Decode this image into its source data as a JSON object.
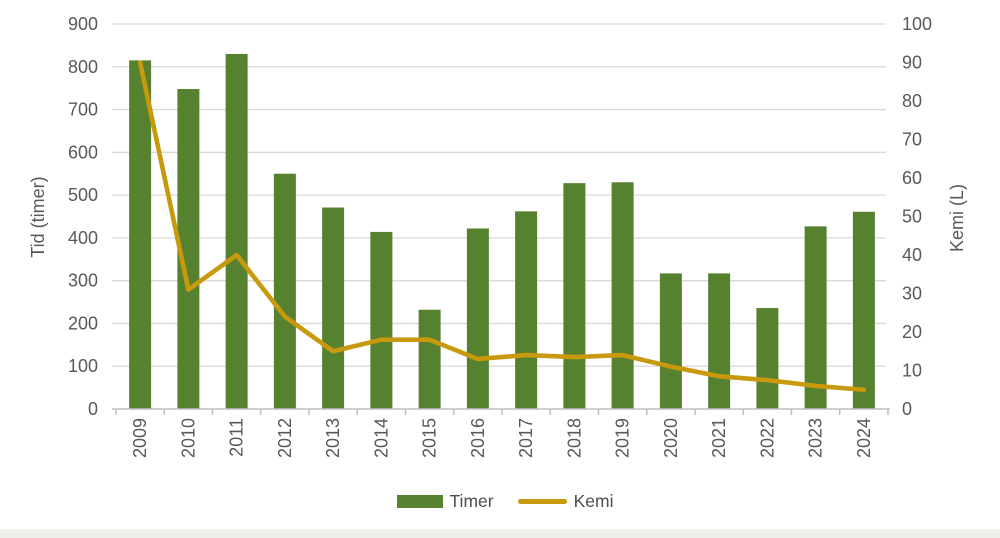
{
  "chart_data": {
    "type": "bar",
    "subtype": "combo-bar-line-dual-axis",
    "categories": [
      "2009",
      "2010",
      "2011",
      "2012",
      "2013",
      "2014",
      "2015",
      "2016",
      "2017",
      "2018",
      "2019",
      "2020",
      "2021",
      "2022",
      "2023",
      "2024"
    ],
    "series": [
      {
        "name": "Timer",
        "type": "bar",
        "axis": "left",
        "color": "#568230",
        "values": [
          815,
          748,
          830,
          550,
          471,
          414,
          232,
          422,
          462,
          528,
          530,
          317,
          317,
          236,
          427,
          461
        ]
      },
      {
        "name": "Kemi",
        "type": "line",
        "axis": "right",
        "color": "#C9990D",
        "values": [
          90,
          31,
          40,
          24,
          15,
          18,
          18,
          13,
          14,
          13.5,
          14,
          11,
          8.5,
          7.5,
          6,
          5
        ]
      }
    ],
    "left_axis": {
      "label": "Tid (timer)",
      "min": 0,
      "max": 900,
      "step": 100
    },
    "right_axis": {
      "label": "Kemi (L)",
      "min": 0,
      "max": 100,
      "step": 10
    },
    "grid": true,
    "legend_position": "bottom",
    "title": ""
  },
  "legend": {
    "items": [
      {
        "label": "Timer",
        "swatch": "bar",
        "color": "#568230"
      },
      {
        "label": "Kemi",
        "swatch": "line",
        "color": "#C9990D"
      }
    ]
  },
  "colors": {
    "bar": "#568230",
    "line": "#C9990D",
    "axis_text": "#595959",
    "gridline": "#D9D9D9",
    "axis_line": "#BFBFBF",
    "bottom_strip": "#F1EFEC"
  }
}
